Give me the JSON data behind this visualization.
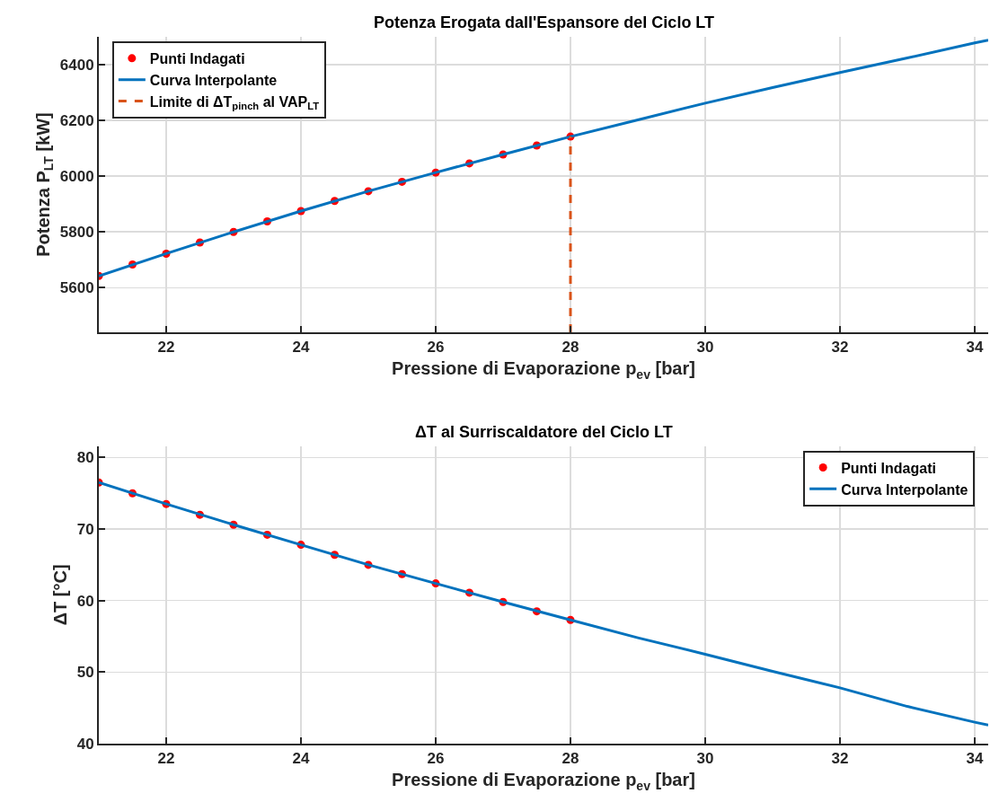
{
  "chart_data": [
    {
      "type": "line",
      "title": "Potenza Erogata dall'Espansore del Ciclo LT",
      "xlabel": "Pressione di Evaporazione p$_{ev}$ [bar]",
      "ylabel": "Potenza P$_{LT}$ [kW]",
      "xlim": [
        21,
        34.2
      ],
      "xticks": [
        22,
        24,
        26,
        28,
        30,
        32,
        34
      ],
      "ylim": [
        5440,
        6500
      ],
      "yticks": [
        5600,
        5800,
        6000,
        6200,
        6400
      ],
      "grid": true,
      "legend": "top left",
      "series": [
        {
          "name": "Punti Indagati",
          "type": "scatter",
          "marker": "circle",
          "color": "#ff0000",
          "x": [
            21,
            21.5,
            22,
            22.5,
            23,
            23.5,
            24,
            24.5,
            25,
            25.5,
            26,
            26.5,
            27,
            27.5,
            28
          ],
          "values": [
            5642,
            5683,
            5722,
            5762,
            5800,
            5838,
            5875,
            5911,
            5946,
            5980,
            6013,
            6046,
            6078,
            6110,
            6142
          ]
        },
        {
          "name": "Curva Interpolante",
          "line_style": "solid",
          "color": "#0072bd",
          "x": [
            21,
            22,
            23,
            24,
            25,
            26,
            27,
            28,
            29,
            30,
            31,
            32,
            33,
            34,
            34.2
          ],
          "values": [
            5642,
            5722,
            5800,
            5875,
            5946,
            6013,
            6078,
            6142,
            6202,
            6262,
            6318,
            6372,
            6424,
            6478,
            6488
          ]
        },
        {
          "name": "Limite di ΔT$_{pinch}$ al VAP$_{LT}$",
          "line_style": "dashed",
          "color": "#d95319",
          "x": [
            28,
            28
          ],
          "values": [
            5440,
            6142
          ]
        }
      ]
    },
    {
      "type": "line",
      "title": "ΔT al Surriscaldatore del Ciclo LT",
      "xlabel": "Pressione di Evaporazione p$_{ev}$ [bar]",
      "ylabel": "ΔT [°C]",
      "xlim": [
        21,
        34.2
      ],
      "xticks": [
        22,
        24,
        26,
        28,
        30,
        32,
        34
      ],
      "ylim": [
        40,
        81.6
      ],
      "yticks": [
        40,
        50,
        60,
        70,
        80
      ],
      "grid": true,
      "legend": "top right",
      "series": [
        {
          "name": "Punti Indagati",
          "type": "scatter",
          "marker": "circle",
          "color": "#ff0000",
          "x": [
            21,
            21.5,
            22,
            22.5,
            23,
            23.5,
            24,
            24.5,
            25,
            25.5,
            26,
            26.5,
            27,
            27.5,
            28
          ],
          "values": [
            76.5,
            75.0,
            73.5,
            72.0,
            70.6,
            69.2,
            67.8,
            66.4,
            65.0,
            63.7,
            62.4,
            61.1,
            59.8,
            58.5,
            57.3
          ]
        },
        {
          "name": "Curva Interpolante",
          "line_style": "solid",
          "color": "#0072bd",
          "x": [
            21,
            22,
            23,
            24,
            25,
            26,
            27,
            28,
            29,
            30,
            31,
            32,
            33,
            34,
            34.2
          ],
          "values": [
            76.5,
            73.5,
            70.6,
            67.8,
            65.0,
            62.4,
            59.8,
            57.3,
            54.8,
            52.5,
            50.1,
            47.8,
            45.2,
            43.0,
            42.6
          ]
        }
      ]
    }
  ]
}
